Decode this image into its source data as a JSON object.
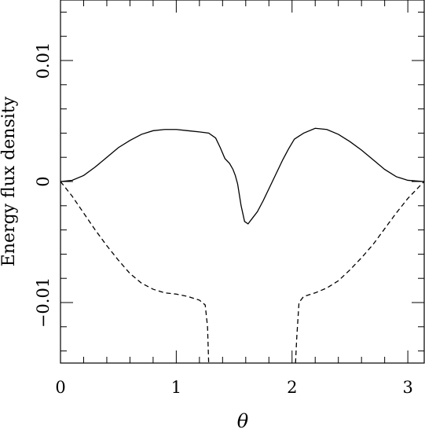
{
  "chart_data": {
    "type": "line",
    "title": "",
    "xlabel": "θ",
    "ylabel": "Energy flux density",
    "xlim": [
      0,
      3.14159
    ],
    "ylim": [
      -0.015,
      0.015
    ],
    "x_ticks": [
      {
        "value": 0,
        "label": "0"
      },
      {
        "value": 1,
        "label": "1"
      },
      {
        "value": 2,
        "label": "2"
      },
      {
        "value": 3,
        "label": "3"
      }
    ],
    "y_ticks": [
      {
        "value": -0.01,
        "label": "−0.01"
      },
      {
        "value": 0,
        "label": "0"
      },
      {
        "value": 0.01,
        "label": "0.01"
      }
    ],
    "grid": false,
    "legend": "none",
    "series": [
      {
        "style": "solid",
        "color": "#000000",
        "points": [
          [
            0.0,
            0.0
          ],
          [
            0.1,
            0.0001
          ],
          [
            0.2,
            0.0005
          ],
          [
            0.3,
            0.0012
          ],
          [
            0.4,
            0.002
          ],
          [
            0.5,
            0.0028
          ],
          [
            0.6,
            0.0034
          ],
          [
            0.7,
            0.0039
          ],
          [
            0.8,
            0.0042
          ],
          [
            0.9,
            0.0043
          ],
          [
            1.0,
            0.0043
          ],
          [
            1.1,
            0.0042
          ],
          [
            1.2,
            0.0041
          ],
          [
            1.28,
            0.004
          ],
          [
            1.34,
            0.0036
          ],
          [
            1.38,
            0.0028
          ],
          [
            1.42,
            0.0019
          ],
          [
            1.46,
            0.0015
          ],
          [
            1.49,
            0.001
          ],
          [
            1.51,
            0.0005
          ],
          [
            1.53,
            -0.0002
          ],
          [
            1.56,
            -0.002
          ],
          [
            1.59,
            -0.0033
          ],
          [
            1.62,
            -0.0035
          ],
          [
            1.66,
            -0.003
          ],
          [
            1.7,
            -0.0025
          ],
          [
            1.75,
            -0.0016
          ],
          [
            1.8,
            -0.0006
          ],
          [
            1.86,
            0.0006
          ],
          [
            1.92,
            0.0018
          ],
          [
            1.97,
            0.0027
          ],
          [
            2.02,
            0.0035
          ],
          [
            2.1,
            0.004
          ],
          [
            2.2,
            0.0044
          ],
          [
            2.3,
            0.0043
          ],
          [
            2.4,
            0.0039
          ],
          [
            2.5,
            0.0033
          ],
          [
            2.6,
            0.0026
          ],
          [
            2.7,
            0.0018
          ],
          [
            2.8,
            0.001
          ],
          [
            2.9,
            0.0004
          ],
          [
            3.0,
            0.0001
          ],
          [
            3.14,
            0.0
          ]
        ]
      },
      {
        "style": "dashed",
        "color": "#000000",
        "points": [
          [
            0.0,
            0.0
          ],
          [
            0.1,
            -0.0012
          ],
          [
            0.2,
            -0.0026
          ],
          [
            0.3,
            -0.004
          ],
          [
            0.4,
            -0.0053
          ],
          [
            0.5,
            -0.0065
          ],
          [
            0.6,
            -0.0076
          ],
          [
            0.7,
            -0.0084
          ],
          [
            0.8,
            -0.0089
          ],
          [
            0.9,
            -0.0092
          ],
          [
            1.0,
            -0.0093
          ],
          [
            1.1,
            -0.0095
          ],
          [
            1.2,
            -0.0098
          ],
          [
            1.25,
            -0.0102
          ],
          [
            1.27,
            -0.012
          ],
          [
            1.28,
            -0.015
          ]
        ]
      },
      {
        "style": "dashed",
        "color": "#000000",
        "points": [
          [
            2.03,
            -0.015
          ],
          [
            2.04,
            -0.013
          ],
          [
            2.06,
            -0.01
          ],
          [
            2.1,
            -0.0095
          ],
          [
            2.2,
            -0.0092
          ],
          [
            2.3,
            -0.0088
          ],
          [
            2.4,
            -0.0082
          ],
          [
            2.5,
            -0.0073
          ],
          [
            2.6,
            -0.0063
          ],
          [
            2.7,
            -0.0052
          ],
          [
            2.8,
            -0.0039
          ],
          [
            2.9,
            -0.0026
          ],
          [
            3.0,
            -0.0014
          ],
          [
            3.14,
            0.0
          ]
        ]
      }
    ]
  }
}
